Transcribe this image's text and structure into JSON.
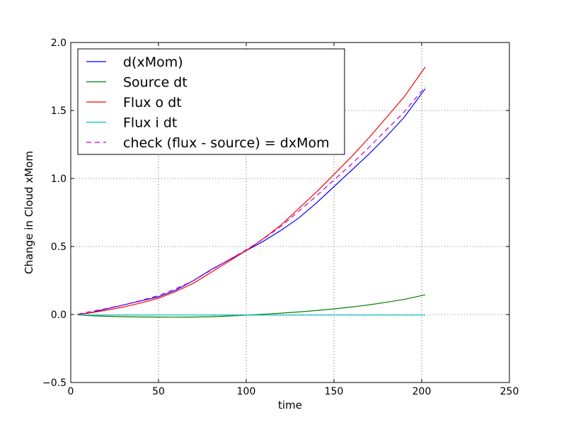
{
  "chart_data": {
    "type": "line",
    "xlabel": "time",
    "ylabel": "Change in Cloud xMom",
    "xlim": [
      0,
      250
    ],
    "ylim": [
      -0.5,
      2.0
    ],
    "xticks": [
      0,
      50,
      100,
      150,
      200,
      250
    ],
    "yticks": [
      -0.5,
      0.0,
      0.5,
      1.0,
      1.5,
      2.0
    ],
    "xtick_labels": [
      "0",
      "50",
      "100",
      "150",
      "200",
      "250"
    ],
    "ytick_labels": [
      "−0.5",
      "0.0",
      "0.5",
      "1.0",
      "1.5",
      "2.0"
    ],
    "grid": true,
    "legend_position": "upper-left",
    "series": [
      {
        "name": "d(xMom)",
        "color": "#0000ff",
        "dash": "solid",
        "x": [
          4,
          10,
          20,
          30,
          40,
          50,
          60,
          70,
          80,
          90,
          100,
          110,
          120,
          130,
          140,
          150,
          160,
          170,
          180,
          190,
          202
        ],
        "y": [
          0.0,
          0.01,
          0.04,
          0.07,
          0.1,
          0.13,
          0.18,
          0.25,
          0.33,
          0.4,
          0.47,
          0.54,
          0.62,
          0.71,
          0.82,
          0.94,
          1.06,
          1.18,
          1.31,
          1.45,
          1.66
        ]
      },
      {
        "name": "Source dt",
        "color": "#008000",
        "dash": "solid",
        "x": [
          4,
          10,
          20,
          30,
          40,
          50,
          60,
          70,
          80,
          90,
          100,
          110,
          120,
          130,
          140,
          150,
          160,
          170,
          180,
          190,
          202
        ],
        "y": [
          -0.002,
          -0.008,
          -0.013,
          -0.016,
          -0.018,
          -0.019,
          -0.02,
          -0.019,
          -0.016,
          -0.011,
          -0.005,
          0.002,
          0.01,
          0.019,
          0.029,
          0.041,
          0.055,
          0.071,
          0.09,
          0.111,
          0.145
        ]
      },
      {
        "name": "Flux o dt",
        "color": "#ff0000",
        "dash": "solid",
        "x": [
          4,
          10,
          20,
          30,
          40,
          50,
          60,
          70,
          80,
          90,
          100,
          110,
          120,
          130,
          140,
          150,
          160,
          170,
          180,
          190,
          202
        ],
        "y": [
          0.0,
          0.01,
          0.03,
          0.055,
          0.085,
          0.12,
          0.17,
          0.23,
          0.31,
          0.39,
          0.47,
          0.56,
          0.66,
          0.78,
          0.9,
          1.03,
          1.16,
          1.3,
          1.45,
          1.6,
          1.82
        ]
      },
      {
        "name": "Flux i dt",
        "color": "#00bfbf",
        "dash": "solid",
        "x": [
          4,
          50,
          100,
          150,
          202
        ],
        "y": [
          -0.004,
          -0.004,
          -0.004,
          -0.004,
          -0.004
        ]
      },
      {
        "name": "check (flux - source) = dxMom",
        "color": "#bf00bf",
        "dash": "dashed",
        "x": [
          4,
          10,
          20,
          30,
          40,
          50,
          60,
          70,
          80,
          90,
          100,
          110,
          120,
          130,
          140,
          150,
          160,
          170,
          180,
          190,
          202
        ],
        "y": [
          0.002,
          0.018,
          0.043,
          0.071,
          0.103,
          0.139,
          0.19,
          0.249,
          0.326,
          0.401,
          0.475,
          0.558,
          0.65,
          0.761,
          0.871,
          0.989,
          1.105,
          1.229,
          1.36,
          1.489,
          1.675
        ]
      }
    ]
  }
}
